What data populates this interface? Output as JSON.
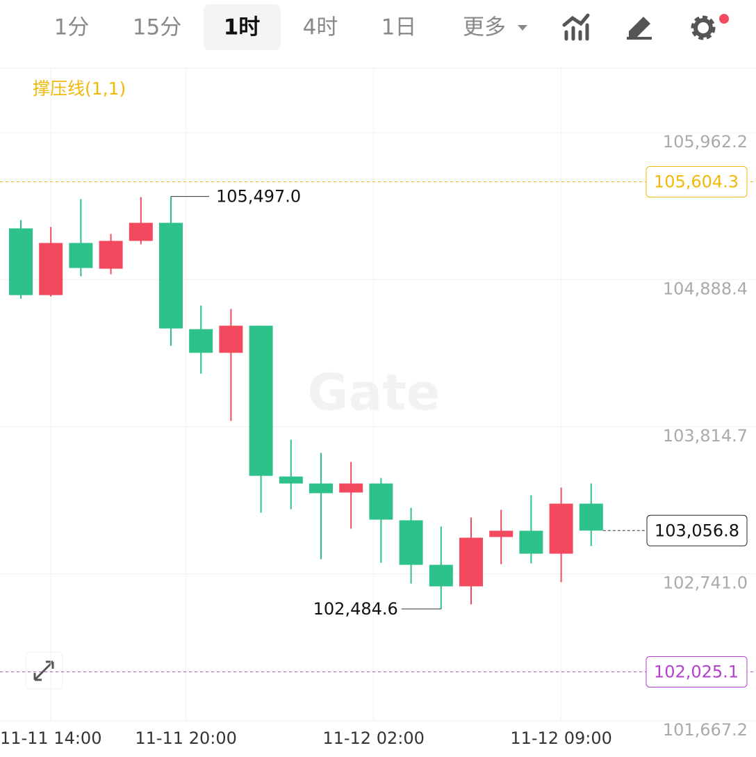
{
  "toolbar": {
    "tabs": [
      "1分",
      "15分",
      "1时",
      "4时",
      "1日",
      "更多"
    ],
    "active": 2
  },
  "chart_data": {
    "type": "candlestick",
    "indicator": "撑压线(1,1)",
    "watermark": "Gate",
    "up_color": "#f2495e",
    "down_color": "#2cc28a",
    "open": [
      105264.1,
      104776.7,
      105157.5,
      104969.6,
      105172.7,
      105304.7,
      104527.9,
      104355.3,
      104553.3,
      103451.6,
      103400.8,
      103334.8,
      103400.8,
      103131.8,
      102806.8,
      102649.5,
      103010.0,
      103055.6,
      102888.1,
      103253.6
    ],
    "high": [
      105325.0,
      105274.3,
      105477.3,
      105223.5,
      105492.5,
      105497.0,
      104700.6,
      104675.2,
      104553.3,
      103720.7,
      103624.2,
      103558.4,
      103441.5,
      103223.1,
      103086.1,
      103152.1,
      103207.9,
      103314.5,
      103370.4,
      103400.8
    ],
    "low": [
      104751.3,
      104766.6,
      104913.8,
      104929.0,
      105147.3,
      104406.1,
      104203.0,
      103857.8,
      103187.6,
      103213.0,
      102847.4,
      103070.8,
      102822.1,
      102669.8,
      102484.6,
      102517.5,
      102811.9,
      102817.0,
      102680.0,
      102943.9
    ],
    "close": [
      104776.7,
      105157.5,
      104974.7,
      105172.7,
      105304.7,
      104533.0,
      104355.3,
      104553.3,
      103456.7,
      103400.8,
      103329.8,
      103400.8,
      103136.8,
      102806.8,
      102649.5,
      103004.8,
      103055.6,
      102888.1,
      103253.6,
      103056.8
    ],
    "high_label": "105,497.0",
    "low_label": "102,484.6",
    "last_price_label": "103,056.8",
    "price_lines": [
      {
        "value": 105604.3,
        "label": "105,604.3",
        "color": "#f0b90b"
      },
      {
        "value": 102025.1,
        "label": "102,025.1",
        "color": "#b43fcf"
      }
    ],
    "ylim": [
      101667.2,
      106434.5
    ],
    "yticks": [
      {
        "value": 101667.2,
        "label": "101,667.2"
      },
      {
        "value": 102741.0,
        "label": "102,741.0"
      },
      {
        "value": 103814.7,
        "label": "103,814.7"
      },
      {
        "value": 104888.4,
        "label": "104,888.4"
      },
      {
        "value": 105962.2,
        "label": "105,962.2"
      }
    ],
    "xticks": [
      {
        "value": 1,
        "label": "11-11 14:00"
      },
      {
        "value": 5.5,
        "label": "11-11 20:00"
      },
      {
        "value": 11.75,
        "label": "11-12 02:00"
      },
      {
        "value": 18,
        "label": "11-12 09:00"
      }
    ],
    "grid": true
  }
}
